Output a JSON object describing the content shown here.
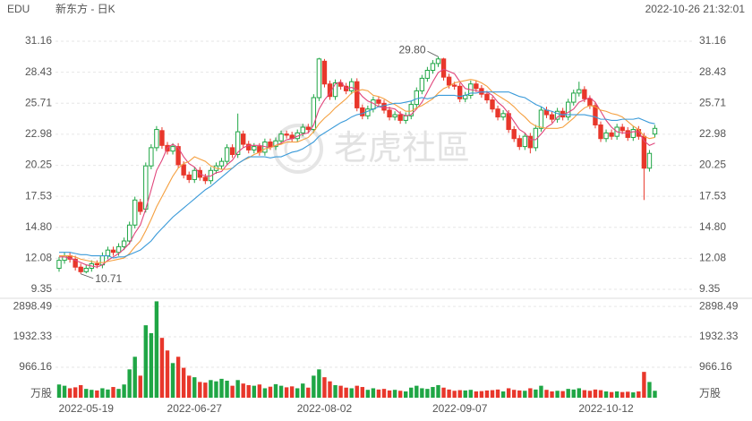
{
  "chart_data": {
    "type": "candlestick",
    "title": "EDU",
    "subtitle": "新东方 - 日K",
    "timestamp": "2022-10-26 21:32:01",
    "watermark": "老虎社區",
    "max_label": "29.80",
    "min_label": "10.71",
    "up_color": "#1fa645",
    "down_color": "#e8372b",
    "ylim": [
      9.35,
      31.16
    ],
    "yticks": [
      9.35,
      12.08,
      {
        "value": 14.8,
        "label": "14.80"
      },
      17.53,
      20.25,
      22.98,
      25.71,
      28.43,
      31.16
    ],
    "grid": true,
    "categories": [
      null,
      null,
      null,
      null,
      null,
      "2022-05-19",
      null,
      null,
      null,
      null,
      null,
      null,
      null,
      null,
      null,
      null,
      null,
      null,
      null,
      null,
      null,
      null,
      null,
      null,
      null,
      "2022-06-27",
      null,
      null,
      null,
      null,
      null,
      null,
      null,
      null,
      null,
      null,
      null,
      null,
      null,
      null,
      null,
      null,
      null,
      null,
      null,
      null,
      null,
      null,
      null,
      "2022-08-02",
      null,
      null,
      null,
      null,
      null,
      null,
      null,
      null,
      null,
      null,
      null,
      null,
      null,
      null,
      null,
      null,
      null,
      null,
      null,
      null,
      null,
      null,
      null,
      null,
      "2022-09-07",
      null,
      null,
      null,
      null,
      null,
      null,
      null,
      null,
      null,
      null,
      null,
      null,
      null,
      null,
      null,
      null,
      null,
      null,
      null,
      null,
      null,
      null,
      null,
      null,
      null,
      null,
      "2022-10-12",
      null,
      null,
      null,
      null,
      null,
      null,
      null,
      null,
      null
    ],
    "open": [
      11.2,
      11.9,
      12.3,
      12.0,
      11.3,
      10.9,
      11.2,
      11.6,
      11.5,
      12.3,
      12.8,
      12.6,
      13.1,
      13.6,
      15.0,
      17.0,
      16.4,
      20.2,
      21.8,
      23.3,
      22.0,
      21.5,
      21.9,
      20.3,
      19.4,
      19.0,
      19.8,
      19.2,
      18.9,
      19.8,
      20.2,
      20.6,
      21.8,
      21.2,
      23.0,
      22.1,
      21.6,
      21.9,
      21.4,
      22.3,
      21.9,
      22.4,
      23.0,
      22.9,
      22.6,
      23.1,
      23.6,
      23.4,
      26.2,
      29.4,
      27.4,
      26.3,
      27.5,
      27.2,
      26.8,
      27.6,
      25.3,
      24.6,
      25.2,
      26.0,
      25.7,
      25.1,
      24.5,
      24.7,
      24.2,
      24.6,
      25.6,
      26.8,
      27.9,
      28.6,
      29.2,
      29.6,
      28.0,
      27.3,
      27.2,
      26.1,
      26.4,
      27.4,
      27.0,
      26.5,
      26.0,
      25.2,
      24.5,
      24.8,
      23.4,
      22.6,
      21.9,
      22.8,
      21.8,
      23.5,
      25.1,
      24.7,
      24.3,
      25.0,
      24.5,
      25.8,
      26.6,
      26.9,
      26.1,
      25.5,
      23.8,
      22.6,
      23.1,
      22.8,
      23.6,
      23.3,
      22.7,
      23.4,
      22.8,
      20.0,
      23.0
    ],
    "high": [
      12.2,
      12.6,
      12.6,
      12.3,
      11.6,
      11.5,
      11.9,
      11.9,
      12.6,
      13.1,
      13.1,
      13.4,
      13.9,
      15.3,
      17.5,
      17.3,
      20.5,
      22.1,
      23.7,
      23.6,
      22.3,
      22.2,
      22.2,
      20.6,
      19.7,
      20.1,
      20.1,
      19.5,
      20.1,
      20.5,
      20.9,
      22.1,
      22.1,
      24.8,
      23.3,
      22.4,
      22.2,
      22.2,
      22.6,
      22.6,
      22.7,
      23.3,
      23.3,
      23.2,
      23.4,
      23.9,
      23.9,
      26.5,
      29.7,
      29.6,
      27.7,
      27.8,
      27.8,
      27.5,
      27.9,
      27.9,
      25.6,
      25.5,
      26.3,
      26.3,
      26.0,
      25.4,
      25.0,
      25.0,
      24.9,
      25.9,
      27.1,
      28.2,
      28.9,
      29.5,
      29.8,
      29.7,
      28.3,
      27.6,
      27.5,
      26.7,
      27.7,
      27.7,
      27.3,
      26.8,
      26.3,
      25.5,
      25.1,
      25.1,
      23.7,
      22.9,
      23.1,
      23.1,
      23.8,
      25.4,
      25.4,
      25.0,
      25.3,
      25.3,
      26.1,
      26.9,
      27.6,
      27.2,
      26.4,
      25.8,
      24.1,
      23.4,
      23.4,
      23.9,
      23.9,
      23.6,
      23.7,
      23.7,
      23.1,
      21.6,
      23.8
    ],
    "low": [
      10.9,
      11.6,
      11.7,
      11.0,
      10.71,
      10.75,
      10.9,
      11.2,
      11.2,
      12.0,
      12.3,
      12.3,
      12.8,
      13.3,
      14.7,
      15.9,
      16.1,
      19.9,
      21.5,
      21.7,
      21.2,
      21.2,
      20.0,
      19.1,
      18.7,
      18.7,
      18.9,
      18.6,
      18.6,
      19.5,
      19.9,
      20.3,
      20.9,
      20.9,
      21.8,
      21.3,
      21.3,
      21.1,
      21.1,
      21.6,
      21.6,
      22.1,
      22.6,
      22.3,
      22.3,
      22.8,
      23.1,
      23.1,
      25.9,
      27.1,
      26.0,
      26.0,
      26.9,
      26.5,
      26.5,
      25.0,
      24.3,
      24.3,
      24.9,
      25.4,
      24.8,
      24.2,
      24.2,
      23.9,
      23.9,
      24.3,
      25.3,
      26.5,
      27.6,
      28.3,
      28.9,
      27.7,
      27.0,
      26.9,
      25.8,
      25.8,
      26.1,
      26.7,
      26.2,
      25.7,
      24.9,
      24.2,
      24.2,
      23.1,
      22.3,
      21.6,
      21.6,
      21.3,
      21.5,
      23.2,
      24.4,
      24.0,
      24.0,
      24.2,
      24.2,
      25.5,
      26.3,
      25.8,
      25.2,
      23.5,
      22.3,
      22.3,
      22.5,
      22.5,
      23.0,
      22.4,
      22.4,
      22.5,
      17.2,
      19.7,
      22.7
    ],
    "close": [
      11.9,
      12.3,
      12.0,
      11.3,
      10.9,
      11.2,
      11.6,
      11.5,
      12.3,
      12.8,
      12.6,
      13.1,
      13.6,
      15.0,
      17.2,
      16.2,
      20.2,
      21.8,
      23.4,
      22.0,
      21.5,
      21.9,
      20.3,
      19.4,
      19.0,
      19.8,
      19.2,
      18.9,
      19.8,
      20.2,
      20.6,
      21.8,
      21.2,
      23.2,
      22.1,
      21.6,
      21.9,
      21.4,
      22.3,
      21.9,
      22.4,
      23.0,
      22.9,
      22.6,
      23.1,
      23.6,
      23.4,
      26.2,
      29.6,
      27.4,
      26.3,
      27.5,
      27.2,
      26.8,
      27.6,
      25.3,
      24.6,
      25.2,
      26.0,
      25.7,
      25.1,
      24.5,
      24.7,
      24.2,
      24.6,
      25.6,
      26.8,
      27.9,
      28.6,
      29.2,
      29.6,
      28.0,
      27.3,
      27.2,
      26.1,
      26.4,
      27.4,
      27.0,
      26.5,
      26.0,
      25.2,
      24.5,
      24.8,
      23.4,
      22.6,
      21.9,
      22.8,
      21.8,
      23.5,
      25.1,
      24.7,
      24.3,
      25.0,
      24.5,
      25.8,
      26.6,
      26.9,
      26.1,
      25.5,
      23.8,
      22.6,
      23.1,
      22.8,
      23.6,
      23.3,
      22.7,
      23.4,
      22.8,
      20.0,
      21.3,
      23.5
    ],
    "ma_lines": [
      {
        "color": "#e0457b",
        "values": [
          12.2,
          12.2,
          12.1,
          11.9,
          11.7,
          11.5,
          11.4,
          11.3,
          11.5,
          11.9,
          12.2,
          12.5,
          12.9,
          13.4,
          14.3,
          15.0,
          16.4,
          18.1,
          19.8,
          20.7,
          21.8,
          22.1,
          21.8,
          21.0,
          20.4,
          20.1,
          19.5,
          19.3,
          19.3,
          19.6,
          19.7,
          20.3,
          20.7,
          21.4,
          21.8,
          22.0,
          22.0,
          22.0,
          21.9,
          21.8,
          22.0,
          22.2,
          22.5,
          22.6,
          22.8,
          23.0,
          23.1,
          23.8,
          25.2,
          26.0,
          26.6,
          27.4,
          27.6,
          27.0,
          27.1,
          26.9,
          26.3,
          25.9,
          25.7,
          25.4,
          25.3,
          25.3,
          25.2,
          24.8,
          24.6,
          24.7,
          25.2,
          25.8,
          26.7,
          27.6,
          28.4,
          28.7,
          28.5,
          28.3,
          27.6,
          27.0,
          26.9,
          26.8,
          26.7,
          26.7,
          26.4,
          25.8,
          25.4,
          24.8,
          24.1,
          23.4,
          23.1,
          22.5,
          22.5,
          23.0,
          23.6,
          23.9,
          24.5,
          24.7,
          24.9,
          25.2,
          25.8,
          26.0,
          26.2,
          25.8,
          25.0,
          24.2,
          23.6,
          23.2,
          23.1,
          23.1,
          23.2,
          23.2,
          22.4,
          22.0,
          22.2
        ]
      },
      {
        "color": "#f5a040",
        "values": [
          12.3,
          12.3,
          12.3,
          12.2,
          12.0,
          11.9,
          11.8,
          11.7,
          11.7,
          11.8,
          11.9,
          12.0,
          12.1,
          12.5,
          13.1,
          13.6,
          14.5,
          15.5,
          16.6,
          17.5,
          18.4,
          19.3,
          20.0,
          20.4,
          20.6,
          21.0,
          20.8,
          20.6,
          20.2,
          20.0,
          19.9,
          19.9,
          20.0,
          20.4,
          20.7,
          20.9,
          21.2,
          21.4,
          21.7,
          21.8,
          22.0,
          22.1,
          22.3,
          22.3,
          22.3,
          22.5,
          22.7,
          23.2,
          23.9,
          24.4,
          24.8,
          25.3,
          25.7,
          26.1,
          26.6,
          26.8,
          26.9,
          26.8,
          26.4,
          26.3,
          26.1,
          25.8,
          25.6,
          25.3,
          25.0,
          25.0,
          25.3,
          25.5,
          25.8,
          26.1,
          26.6,
          27.0,
          27.2,
          27.5,
          27.6,
          27.7,
          27.8,
          27.7,
          27.5,
          27.2,
          26.7,
          26.4,
          26.1,
          25.8,
          25.4,
          24.9,
          24.5,
          24.0,
          23.7,
          23.6,
          23.5,
          23.5,
          23.5,
          23.6,
          24.0,
          24.4,
          24.9,
          25.3,
          25.5,
          25.4,
          25.1,
          25.0,
          24.8,
          24.7,
          24.5,
          24.1,
          23.7,
          23.4,
          22.8,
          22.6,
          22.7
        ]
      },
      {
        "color": "#3a9ad9",
        "values": [
          12.6,
          12.6,
          12.6,
          12.5,
          12.4,
          12.4,
          12.3,
          12.3,
          12.3,
          12.3,
          12.1,
          12.2,
          12.2,
          12.4,
          12.6,
          12.8,
          13.2,
          13.6,
          14.2,
          14.7,
          15.2,
          15.7,
          16.1,
          16.5,
          16.9,
          17.3,
          17.7,
          18.1,
          18.4,
          18.8,
          19.2,
          19.6,
          20.0,
          20.4,
          20.7,
          21.0,
          21.0,
          21.0,
          21.0,
          20.9,
          21.0,
          21.0,
          21.2,
          21.4,
          21.5,
          21.7,
          22.0,
          22.3,
          22.8,
          23.1,
          23.4,
          23.7,
          24.0,
          24.2,
          24.5,
          24.7,
          24.8,
          25.0,
          25.2,
          25.4,
          25.5,
          25.6,
          25.7,
          25.7,
          25.8,
          25.9,
          26.1,
          26.2,
          26.1,
          26.2,
          26.4,
          26.4,
          26.4,
          26.4,
          26.3,
          26.4,
          26.6,
          26.6,
          26.7,
          26.7,
          26.7,
          26.7,
          26.7,
          26.7,
          26.5,
          26.3,
          26.2,
          25.9,
          25.6,
          25.4,
          25.1,
          25.0,
          24.8,
          24.7,
          24.7,
          24.7,
          24.7,
          24.7,
          24.6,
          24.5,
          24.3,
          24.3,
          24.2,
          24.2,
          24.3,
          24.3,
          24.3,
          24.4,
          24.2,
          24.0,
          23.9
        ]
      }
    ],
    "volume": {
      "unit": "万股",
      "ylim": [
        0,
        3100
      ],
      "yticks": [
        966.16,
        1932.33,
        2898.49
      ],
      "values": [
        420,
        380,
        300,
        330,
        400,
        280,
        250,
        230,
        300,
        260,
        340,
        280,
        420,
        900,
        1300,
        700,
        2300,
        2050,
        3060,
        1900,
        1500,
        1100,
        1300,
        950,
        700,
        650,
        500,
        480,
        560,
        520,
        600,
        540,
        380,
        560,
        450,
        400,
        380,
        420,
        300,
        350,
        430,
        380,
        330,
        360,
        300,
        450,
        320,
        700,
        900,
        650,
        520,
        400,
        380,
        320,
        300,
        380,
        340,
        250,
        300,
        260,
        280,
        230,
        250,
        220,
        200,
        320,
        380,
        300,
        280,
        340,
        400,
        320,
        260,
        220,
        240,
        230,
        250,
        200,
        210,
        230,
        240,
        260,
        200,
        300,
        250,
        230,
        220,
        300,
        260,
        380,
        250,
        200,
        220,
        210,
        280,
        260,
        300,
        240,
        220,
        260,
        240,
        200,
        180,
        200,
        180,
        190,
        170,
        200,
        820,
        500,
        220
      ]
    }
  }
}
